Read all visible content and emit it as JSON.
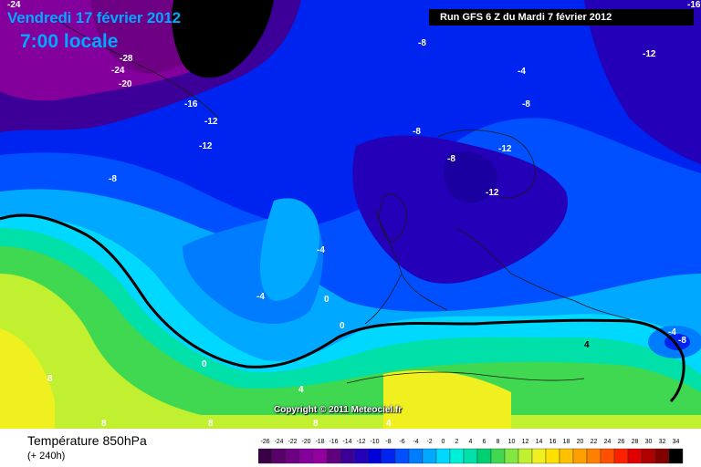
{
  "header": {
    "date_line": "Vendredi 17 février 2012",
    "time_line": "7:00 locale",
    "run_info": "Run GFS 6 Z du Mardi 7 février 2012"
  },
  "copyright": "Copyright © 2011 Meteociel.fr",
  "footer": {
    "title": "Température 850hPa",
    "subtitle": "(+ 240h)"
  },
  "legend": {
    "ticks": [
      "-26",
      "-24",
      "-22",
      "-20",
      "-18",
      "-16",
      "-14",
      "-12",
      "-10",
      "-8",
      "-6",
      "-4",
      "-2",
      "0",
      "2",
      "4",
      "6",
      "8",
      "10",
      "12",
      "14",
      "16",
      "18",
      "20",
      "22",
      "24",
      "26",
      "28",
      "30",
      "32",
      "34"
    ],
    "colors": [
      "#3a0046",
      "#5a006a",
      "#6e0084",
      "#84009c",
      "#9400a0",
      "#60007c",
      "#3c0098",
      "#2400b8",
      "#0000d8",
      "#0024f0",
      "#0050ff",
      "#007cff",
      "#00a8ff",
      "#00d8ff",
      "#00f0d8",
      "#00e0a8",
      "#00d070",
      "#40d850",
      "#80e840",
      "#c0f030",
      "#f0f020",
      "#ffe000",
      "#ffc000",
      "#ffa000",
      "#ff8000",
      "#ff5000",
      "#ff2000",
      "#e00000",
      "#b00000",
      "#800000",
      "#000000"
    ]
  },
  "map_labels": [
    {
      "text": "-24",
      "color": "#ffffff"
    },
    {
      "text": "-28",
      "color": "#ffffff"
    },
    {
      "text": "-24",
      "color": "#ffffff"
    },
    {
      "text": "-20",
      "color": "#ffffff"
    },
    {
      "text": "-16",
      "color": "#ffffff"
    },
    {
      "text": "-12",
      "color": "#ffffff"
    },
    {
      "text": "-12",
      "color": "#ffffff"
    },
    {
      "text": "-8",
      "color": "#ffffff"
    },
    {
      "text": "-8",
      "color": "#ffffff"
    },
    {
      "text": "-4",
      "color": "#ffffff"
    },
    {
      "text": "-8",
      "color": "#ffffff"
    },
    {
      "text": "-8",
      "color": "#ffffff"
    },
    {
      "text": "-8",
      "color": "#ffffff"
    },
    {
      "text": "-12",
      "color": "#ffffff"
    },
    {
      "text": "-12",
      "color": "#ffffff"
    },
    {
      "text": "-12",
      "color": "#ffffff"
    },
    {
      "text": "-16",
      "color": "#ffffff"
    },
    {
      "text": "-4",
      "color": "#ffffff"
    },
    {
      "text": "-4",
      "color": "#ffffff"
    },
    {
      "text": "0",
      "color": "#ffffff"
    },
    {
      "text": "0",
      "color": "#ffffff"
    },
    {
      "text": "0",
      "color": "#ffffff"
    },
    {
      "text": "4",
      "color": "#ffffff"
    },
    {
      "text": "4",
      "color": "#000000"
    },
    {
      "text": "8",
      "color": "#ffffff"
    },
    {
      "text": "8",
      "color": "#ffffff"
    },
    {
      "text": "8",
      "color": "#ffffff"
    },
    {
      "text": "8",
      "color": "#ffffff"
    },
    {
      "text": "4",
      "color": "#ffffff"
    },
    {
      "text": "-4",
      "color": "#ffffff"
    },
    {
      "text": "-8",
      "color": "#ffffff"
    }
  ]
}
